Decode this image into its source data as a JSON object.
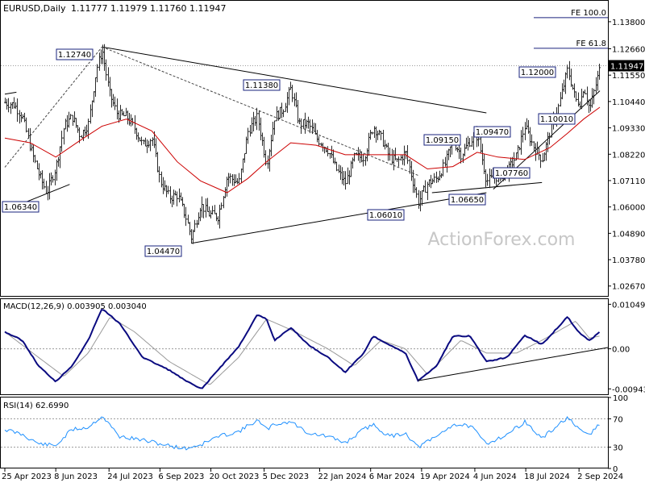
{
  "header": {
    "symbol": "EURUSD,Daily",
    "ohlc": "1.11777 1.11979 1.11760 1.11947"
  },
  "watermark": "ActionForex.com",
  "colors": {
    "price": "#2a2a2a",
    "ma": "#cc0000",
    "macd": "#0a0a80",
    "signal": "#999999",
    "rsi": "#1e90ff",
    "box_border": "#1a237e",
    "box_fill": "#ffffff",
    "current_box": "#000000",
    "grid_ref": "#9a9a9a"
  },
  "chart_data": [
    {
      "type": "candlestick",
      "title": "EURUSD,Daily",
      "ylim": [
        1.0222,
        1.1468
      ],
      "y_ticks": [
        "1.13800",
        "1.12660",
        "1.11550",
        "1.10440",
        "1.09330",
        "1.08220",
        "1.07110",
        "1.06000",
        "1.04890",
        "1.03780",
        "1.02670"
      ],
      "current_price": "1.11947",
      "x_ticks": [
        "25 Apr 2023",
        "8 Jun 2023",
        "24 Jul 2023",
        "6 Sep 2023",
        "20 Oct 2023",
        "5 Dec 2023",
        "22 Jan 2024",
        "6 Mar 2024",
        "19 Apr 2024",
        "4 Jun 2024",
        "18 Jul 2024",
        "2 Sep 2024"
      ],
      "pivots": [
        {
          "label": "1.12740",
          "date": "2023-07-18",
          "price": 1.1274
        },
        {
          "label": "1.06340",
          "date": "2023-05-31",
          "price": 1.0634
        },
        {
          "label": "1.04470",
          "date": "2023-10-03",
          "price": 1.0447
        },
        {
          "label": "1.11380",
          "date": "2023-12-28",
          "price": 1.1138
        },
        {
          "label": "1.06010",
          "date": "2024-04-16",
          "price": 1.0601
        },
        {
          "label": "1.09150",
          "date": "2024-05-16",
          "price": 1.0915
        },
        {
          "label": "1.06650",
          "date": "2024-06-14",
          "price": 1.0665
        },
        {
          "label": "1.09470",
          "date": "2024-07-17",
          "price": 1.0947
        },
        {
          "label": "1.07760",
          "date": "2024-08-01",
          "price": 1.0776
        },
        {
          "label": "1.12000",
          "date": "2024-08-23",
          "price": 1.12
        },
        {
          "label": "1.10010",
          "date": "2024-09-03",
          "price": 1.1001
        }
      ],
      "fib_levels": [
        {
          "label": "FE 100.0",
          "price": 1.1397
        },
        {
          "label": "FE 61.8",
          "price": 1.1268
        }
      ],
      "close_path": [
        [
          "2023-04-25",
          1.104
        ],
        [
          "2023-05-03",
          1.103
        ],
        [
          "2023-05-10",
          1.098
        ],
        [
          "2023-05-17",
          1.085
        ],
        [
          "2023-05-24",
          1.074
        ],
        [
          "2023-05-31",
          1.066
        ],
        [
          "2023-06-08",
          1.077
        ],
        [
          "2023-06-15",
          1.094
        ],
        [
          "2023-06-22",
          1.098
        ],
        [
          "2023-06-29",
          1.09
        ],
        [
          "2023-07-06",
          1.095
        ],
        [
          "2023-07-13",
          1.118
        ],
        [
          "2023-07-18",
          1.126
        ],
        [
          "2023-07-24",
          1.108
        ],
        [
          "2023-07-31",
          1.099
        ],
        [
          "2023-08-08",
          1.098
        ],
        [
          "2023-08-15",
          1.093
        ],
        [
          "2023-08-22",
          1.086
        ],
        [
          "2023-08-30",
          1.089
        ],
        [
          "2023-09-06",
          1.071
        ],
        [
          "2023-09-14",
          1.064
        ],
        [
          "2023-09-21",
          1.065
        ],
        [
          "2023-09-28",
          1.056
        ],
        [
          "2023-10-03",
          1.047
        ],
        [
          "2023-10-11",
          1.061
        ],
        [
          "2023-10-18",
          1.057
        ],
        [
          "2023-10-26",
          1.056
        ],
        [
          "2023-11-03",
          1.073
        ],
        [
          "2023-11-13",
          1.07
        ],
        [
          "2023-11-21",
          1.092
        ],
        [
          "2023-11-29",
          1.098
        ],
        [
          "2023-12-07",
          1.078
        ],
        [
          "2023-12-14",
          1.098
        ],
        [
          "2023-12-21",
          1.101
        ],
        [
          "2023-12-28",
          1.11
        ],
        [
          "2024-01-04",
          1.095
        ],
        [
          "2024-01-12",
          1.095
        ],
        [
          "2024-01-19",
          1.089
        ],
        [
          "2024-01-29",
          1.084
        ],
        [
          "2024-02-05",
          1.076
        ],
        [
          "2024-02-13",
          1.07
        ],
        [
          "2024-02-21",
          1.081
        ],
        [
          "2024-02-29",
          1.081
        ],
        [
          "2024-03-08",
          1.094
        ],
        [
          "2024-03-15",
          1.089
        ],
        [
          "2024-03-22",
          1.081
        ],
        [
          "2024-03-29",
          1.079
        ],
        [
          "2024-04-05",
          1.083
        ],
        [
          "2024-04-16",
          1.062
        ],
        [
          "2024-04-24",
          1.07
        ],
        [
          "2024-05-02",
          1.072
        ],
        [
          "2024-05-09",
          1.078
        ],
        [
          "2024-05-16",
          1.088
        ],
        [
          "2024-05-23",
          1.082
        ],
        [
          "2024-05-31",
          1.088
        ],
        [
          "2024-06-06",
          1.09
        ],
        [
          "2024-06-14",
          1.071
        ],
        [
          "2024-06-24",
          1.073
        ],
        [
          "2024-07-02",
          1.075
        ],
        [
          "2024-07-10",
          1.082
        ],
        [
          "2024-07-17",
          1.094
        ],
        [
          "2024-07-25",
          1.085
        ],
        [
          "2024-08-01",
          1.08
        ],
        [
          "2024-08-08",
          1.092
        ],
        [
          "2024-08-15",
          1.102
        ],
        [
          "2024-08-23",
          1.118
        ],
        [
          "2024-08-30",
          1.105
        ],
        [
          "2024-09-03",
          1.104
        ],
        [
          "2024-09-06",
          1.111
        ],
        [
          "2024-09-11",
          1.101
        ],
        [
          "2024-09-17",
          1.113
        ],
        [
          "2024-09-20",
          1.119
        ]
      ],
      "ma_path": [
        [
          "2023-04-25",
          1.089
        ],
        [
          "2023-05-17",
          1.087
        ],
        [
          "2023-06-08",
          1.081
        ],
        [
          "2023-06-29",
          1.088
        ],
        [
          "2023-07-18",
          1.094
        ],
        [
          "2023-08-08",
          1.097
        ],
        [
          "2023-08-30",
          1.092
        ],
        [
          "2023-09-21",
          1.079
        ],
        [
          "2023-10-11",
          1.071
        ],
        [
          "2023-11-03",
          1.066
        ],
        [
          "2023-11-21",
          1.072
        ],
        [
          "2023-12-07",
          1.079
        ],
        [
          "2023-12-28",
          1.087
        ],
        [
          "2024-01-19",
          1.086
        ],
        [
          "2024-02-13",
          1.082
        ],
        [
          "2024-03-08",
          1.082
        ],
        [
          "2024-04-05",
          1.082
        ],
        [
          "2024-04-24",
          1.076
        ],
        [
          "2024-05-16",
          1.077
        ],
        [
          "2024-06-06",
          1.083
        ],
        [
          "2024-06-24",
          1.081
        ],
        [
          "2024-07-17",
          1.08
        ],
        [
          "2024-08-08",
          1.085
        ],
        [
          "2024-08-23",
          1.091
        ],
        [
          "2024-09-06",
          1.097
        ],
        [
          "2024-09-20",
          1.102
        ]
      ],
      "annotations": {
        "trend_lines": [
          {
            "from": [
              "2023-07-18",
              1.1274
            ],
            "to": [
              "2024-06-14",
              1.0996
            ],
            "style": "solid"
          },
          {
            "from": [
              "2023-10-03",
              1.0447
            ],
            "to": [
              "2024-06-14",
              1.066
            ],
            "style": "solid"
          },
          {
            "from": [
              "2023-04-25",
              1.0585
            ],
            "to": [
              "2023-06-20",
              1.0695
            ],
            "style": "solid"
          },
          {
            "from": [
              "2023-04-25",
              1.1075
            ],
            "to": [
              "2023-05-05",
              1.1083
            ],
            "style": "solid"
          },
          {
            "from": [
              "2024-06-20",
              1.0675
            ],
            "to": [
              "2024-09-20",
              1.1089
            ],
            "style": "solid"
          },
          {
            "from": [
              "2024-04-28",
              1.066
            ],
            "to": [
              "2024-08-01",
              1.0703
            ],
            "style": "solid"
          },
          {
            "from": [
              "2023-07-18",
              1.1274
            ],
            "to": [
              "2024-04-16",
              1.0733
            ],
            "style": "dashed"
          },
          {
            "from": [
              "2023-04-25",
              1.0767
            ],
            "to": [
              "2023-07-18",
              1.1274
            ],
            "style": "dashed"
          }
        ]
      }
    },
    {
      "type": "line",
      "title": "MACD(12,26,9) 0.003905 0.003040",
      "ylim": [
        -0.0109,
        0.0117
      ],
      "y_ticks": [
        "0.01049",
        "0.00",
        "-0.009435"
      ],
      "macd_path": [
        [
          "2023-04-25",
          0.004
        ],
        [
          "2023-05-10",
          0.002
        ],
        [
          "2023-05-24",
          -0.004
        ],
        [
          "2023-06-08",
          -0.0077
        ],
        [
          "2023-06-22",
          -0.004
        ],
        [
          "2023-07-06",
          0.002
        ],
        [
          "2023-07-18",
          0.0095
        ],
        [
          "2023-08-02",
          0.006
        ],
        [
          "2023-08-22",
          -0.002
        ],
        [
          "2023-09-14",
          -0.005
        ],
        [
          "2023-09-28",
          -0.0075
        ],
        [
          "2023-10-12",
          -0.0095
        ],
        [
          "2023-10-26",
          -0.005
        ],
        [
          "2023-11-13",
          0.0005
        ],
        [
          "2023-11-29",
          0.008
        ],
        [
          "2023-12-07",
          0.007
        ],
        [
          "2023-12-14",
          0.002
        ],
        [
          "2023-12-28",
          0.005
        ],
        [
          "2024-01-12",
          0.001
        ],
        [
          "2024-01-29",
          -0.002
        ],
        [
          "2024-02-13",
          -0.0055
        ],
        [
          "2024-02-29",
          -0.001
        ],
        [
          "2024-03-08",
          0.003
        ],
        [
          "2024-03-22",
          0.001
        ],
        [
          "2024-04-05",
          -0.001
        ],
        [
          "2024-04-16",
          -0.0075
        ],
        [
          "2024-05-02",
          -0.004
        ],
        [
          "2024-05-16",
          0.003
        ],
        [
          "2024-05-31",
          0.003
        ],
        [
          "2024-06-14",
          -0.003
        ],
        [
          "2024-07-02",
          -0.002
        ],
        [
          "2024-07-17",
          0.0032
        ],
        [
          "2024-08-01",
          0.001
        ],
        [
          "2024-08-23",
          0.0075
        ],
        [
          "2024-09-03",
          0.0035
        ],
        [
          "2024-09-11",
          0.002
        ],
        [
          "2024-09-20",
          0.0039
        ]
      ],
      "signal_path": [
        [
          "2023-04-25",
          0.004
        ],
        [
          "2023-05-24",
          -0.002
        ],
        [
          "2023-06-15",
          -0.0065
        ],
        [
          "2023-07-06",
          -0.001
        ],
        [
          "2023-07-25",
          0.0075
        ],
        [
          "2023-08-15",
          0.004
        ],
        [
          "2023-09-14",
          -0.003
        ],
        [
          "2023-10-19",
          -0.0085
        ],
        [
          "2023-11-13",
          -0.002
        ],
        [
          "2023-12-07",
          0.007
        ],
        [
          "2023-12-28",
          0.0045
        ],
        [
          "2024-01-29",
          0.0
        ],
        [
          "2024-02-21",
          -0.004
        ],
        [
          "2024-03-15",
          0.002
        ],
        [
          "2024-04-05",
          0.0
        ],
        [
          "2024-04-24",
          -0.006
        ],
        [
          "2024-05-23",
          0.002
        ],
        [
          "2024-06-14",
          -0.001
        ],
        [
          "2024-07-10",
          -0.001
        ],
        [
          "2024-08-01",
          0.002
        ],
        [
          "2024-08-30",
          0.0065
        ],
        [
          "2024-09-11",
          0.0025
        ],
        [
          "2024-09-20",
          0.003
        ]
      ],
      "trend_line": {
        "from": [
          "2024-04-16",
          -0.0075
        ],
        "to": [
          "2024-09-20",
          0.0003
        ]
      }
    },
    {
      "type": "line",
      "title": "RSI(14) 62.6990",
      "ylim": [
        0,
        100
      ],
      "y_ticks": [
        "100",
        "70",
        "30",
        "0"
      ],
      "levels": [
        70,
        30
      ],
      "rsi_path": [
        [
          "2023-04-25",
          55
        ],
        [
          "2023-05-10",
          48
        ],
        [
          "2023-05-24",
          35
        ],
        [
          "2023-06-08",
          32
        ],
        [
          "2023-06-22",
          55
        ],
        [
          "2023-07-06",
          58
        ],
        [
          "2023-07-18",
          74
        ],
        [
          "2023-08-02",
          45
        ],
        [
          "2023-08-22",
          40
        ],
        [
          "2023-09-14",
          32
        ],
        [
          "2023-09-28",
          28
        ],
        [
          "2023-10-12",
          34
        ],
        [
          "2023-10-26",
          45
        ],
        [
          "2023-11-13",
          52
        ],
        [
          "2023-11-29",
          68
        ],
        [
          "2023-12-07",
          55
        ],
        [
          "2023-12-14",
          62
        ],
        [
          "2023-12-28",
          66
        ],
        [
          "2024-01-12",
          50
        ],
        [
          "2024-01-29",
          45
        ],
        [
          "2024-02-13",
          36
        ],
        [
          "2024-02-29",
          55
        ],
        [
          "2024-03-08",
          62
        ],
        [
          "2024-03-22",
          45
        ],
        [
          "2024-04-05",
          50
        ],
        [
          "2024-04-16",
          30
        ],
        [
          "2024-05-02",
          45
        ],
        [
          "2024-05-16",
          62
        ],
        [
          "2024-05-31",
          60
        ],
        [
          "2024-06-14",
          35
        ],
        [
          "2024-07-02",
          48
        ],
        [
          "2024-07-17",
          66
        ],
        [
          "2024-08-01",
          42
        ],
        [
          "2024-08-23",
          72
        ],
        [
          "2024-09-03",
          52
        ],
        [
          "2024-09-11",
          48
        ],
        [
          "2024-09-20",
          62.7
        ]
      ]
    }
  ]
}
